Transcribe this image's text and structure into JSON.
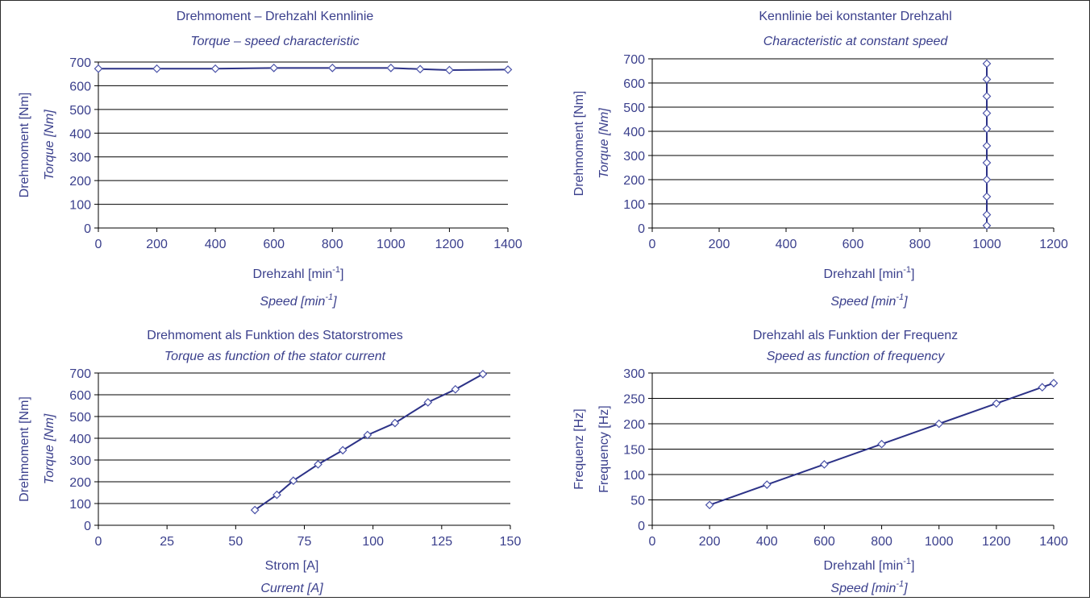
{
  "chart_data": [
    {
      "type": "line",
      "title": "Drehmoment – Drehzahl Kennlinie",
      "subtitle": "Torque – speed characteristic",
      "xlabel": "Drehzahl [min",
      "xlabel_sup": "-1",
      "xlabel_suffix": "]",
      "xlabel2": "Speed [min",
      "xlabel2_sup": "-1",
      "xlabel2_suffix": "]",
      "ylabel": "Drehmoment [Nm]",
      "ylabel2": "Torque [Nm]",
      "xlim": [
        0,
        1400
      ],
      "ylim": [
        0,
        700
      ],
      "xticks": [
        0,
        200,
        400,
        600,
        800,
        1000,
        1200,
        1400
      ],
      "yticks": [
        0,
        100,
        200,
        300,
        400,
        500,
        600,
        700
      ],
      "grid": true,
      "series": [
        {
          "x": [
            0,
            200,
            400,
            600,
            800,
            1000,
            1100,
            1200,
            1400
          ],
          "y": [
            672,
            672,
            672,
            675,
            675,
            675,
            670,
            666,
            668
          ]
        }
      ]
    },
    {
      "type": "line",
      "title": "Kennlinie bei konstanter Drehzahl",
      "subtitle": "Characteristic at constant speed",
      "xlabel": "Drehzahl [min",
      "xlabel_sup": "-1",
      "xlabel_suffix": "]",
      "xlabel2": "Speed [min",
      "xlabel2_sup": "-1",
      "xlabel2_suffix": "]",
      "ylabel": "Drehmoment [Nm]",
      "ylabel2": "Torque [Nm]",
      "xlim": [
        0,
        1200
      ],
      "ylim": [
        0,
        700
      ],
      "xticks": [
        0,
        200,
        400,
        600,
        800,
        1000,
        1200
      ],
      "yticks": [
        0,
        100,
        200,
        300,
        400,
        500,
        600,
        700
      ],
      "grid": true,
      "series": [
        {
          "x": [
            1000,
            1000,
            1000,
            1000,
            1000,
            1000,
            1000,
            1000,
            1000,
            1000,
            1000
          ],
          "y": [
            10,
            55,
            130,
            200,
            270,
            340,
            410,
            475,
            545,
            615,
            680
          ]
        }
      ]
    },
    {
      "type": "line",
      "title": "Drehmoment als Funktion des Statorstromes",
      "subtitle": "Torque as function of the stator current",
      "xlabel": "Strom [A]",
      "xlabel2": "Current [A]",
      "ylabel": "Drehmoment [Nm]",
      "ylabel2": "Torque [Nm]",
      "xlim": [
        0,
        150
      ],
      "ylim": [
        0,
        700
      ],
      "xticks": [
        0,
        25,
        50,
        75,
        100,
        125,
        150
      ],
      "yticks": [
        0,
        100,
        200,
        300,
        400,
        500,
        600,
        700
      ],
      "grid": true,
      "series": [
        {
          "x": [
            57,
            65,
            71,
            80,
            89,
            98,
            108,
            120,
            130,
            140
          ],
          "y": [
            70,
            140,
            205,
            280,
            345,
            415,
            470,
            565,
            625,
            695
          ]
        }
      ]
    },
    {
      "type": "line",
      "title": "Drehzahl als Funktion der Frequenz",
      "subtitle": "Speed as function of frequency",
      "xlabel": "Drehzahl [min",
      "xlabel_sup": "-1",
      "xlabel_suffix": "]",
      "xlabel2": "Speed [min",
      "xlabel2_sup": "-1",
      "xlabel2_suffix": "]",
      "ylabel": "Frequenz [Hz]",
      "ylabel2": "Frequency [Hz]",
      "xlim": [
        0,
        1400
      ],
      "ylim": [
        0,
        300
      ],
      "xticks": [
        0,
        200,
        400,
        600,
        800,
        1000,
        1200,
        1400
      ],
      "yticks": [
        0,
        50,
        100,
        150,
        200,
        250,
        300
      ],
      "grid": true,
      "series": [
        {
          "x": [
            200,
            400,
            600,
            800,
            1000,
            1200,
            1360,
            1400
          ],
          "y": [
            40,
            80,
            120,
            160,
            200,
            240,
            272,
            280
          ]
        }
      ]
    }
  ]
}
